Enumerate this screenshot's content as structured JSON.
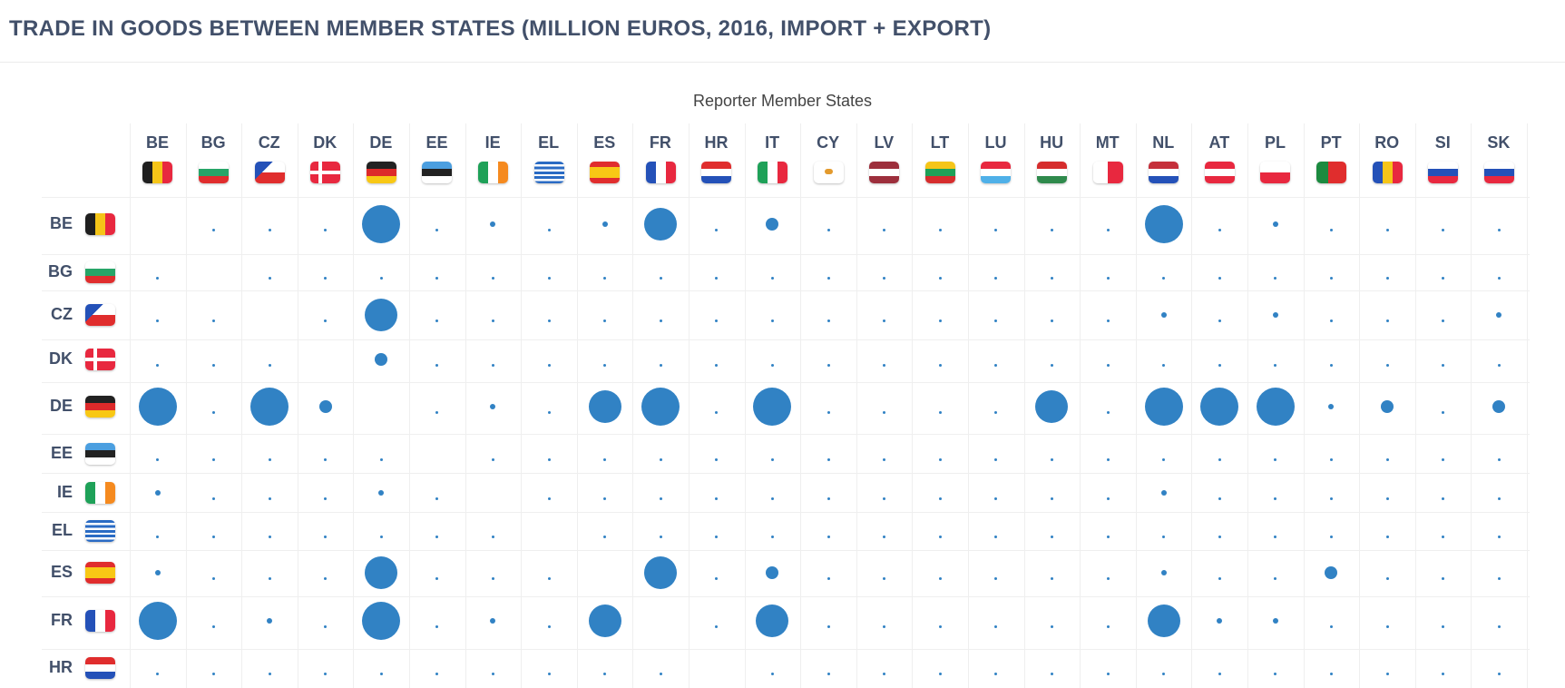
{
  "page": {
    "title": "TRADE IN GOODS BETWEEN MEMBER STATES (MILLION EUROS, 2016, IMPORT + EXPORT)"
  },
  "chart_data": {
    "type": "bubble-matrix",
    "title": "TRADE IN GOODS BETWEEN MEMBER STATES (MILLION EUROS, 2016, IMPORT + EXPORT)",
    "column_axis_label": "Reporter Member States",
    "columns": [
      "BE",
      "BG",
      "CZ",
      "DK",
      "DE",
      "EE",
      "IE",
      "EL",
      "ES",
      "FR",
      "HR",
      "IT",
      "CY",
      "LV",
      "LT",
      "LU",
      "HU",
      "MT",
      "NL",
      "AT",
      "PL",
      "PT",
      "RO",
      "SI",
      "SK"
    ],
    "rows": [
      "BE",
      "BG",
      "CZ",
      "DK",
      "DE",
      "EE",
      "IE",
      "EL",
      "ES",
      "FR",
      "HR"
    ],
    "bubble_color": "#3182c4",
    "size_level_legend": "0=tiny, 1=small, 2=medium, 3=large, 4=very large (estimated visual size)",
    "values": [
      [
        null,
        0,
        0,
        0,
        4,
        0,
        1,
        0,
        1,
        3,
        0,
        2,
        0,
        0,
        0,
        0,
        0,
        0,
        4,
        0,
        1,
        0,
        0,
        0,
        0
      ],
      [
        0,
        null,
        0,
        0,
        0,
        0,
        0,
        0,
        0,
        0,
        0,
        0,
        0,
        0,
        0,
        0,
        0,
        0,
        0,
        0,
        0,
        0,
        0,
        0,
        0
      ],
      [
        0,
        0,
        null,
        0,
        3,
        0,
        0,
        0,
        0,
        0,
        0,
        0,
        0,
        0,
        0,
        0,
        0,
        0,
        1,
        0,
        1,
        0,
        0,
        0,
        1
      ],
      [
        0,
        0,
        0,
        null,
        2,
        0,
        0,
        0,
        0,
        0,
        0,
        0,
        0,
        0,
        0,
        0,
        0,
        0,
        0,
        0,
        0,
        0,
        0,
        0,
        0
      ],
      [
        4,
        0,
        4,
        2,
        null,
        0,
        1,
        0,
        3,
        4,
        0,
        4,
        0,
        0,
        0,
        0,
        3,
        0,
        4,
        4,
        4,
        1,
        2,
        0,
        2
      ],
      [
        0,
        0,
        0,
        0,
        0,
        null,
        0,
        0,
        0,
        0,
        0,
        0,
        0,
        0,
        0,
        0,
        0,
        0,
        0,
        0,
        0,
        0,
        0,
        0,
        0
      ],
      [
        1,
        0,
        0,
        0,
        1,
        0,
        null,
        0,
        0,
        0,
        0,
        0,
        0,
        0,
        0,
        0,
        0,
        0,
        1,
        0,
        0,
        0,
        0,
        0,
        0
      ],
      [
        0,
        0,
        0,
        0,
        0,
        0,
        0,
        null,
        0,
        0,
        0,
        0,
        0,
        0,
        0,
        0,
        0,
        0,
        0,
        0,
        0,
        0,
        0,
        0,
        0
      ],
      [
        1,
        0,
        0,
        0,
        3,
        0,
        0,
        0,
        null,
        3,
        0,
        2,
        0,
        0,
        0,
        0,
        0,
        0,
        1,
        0,
        0,
        2,
        0,
        0,
        0
      ],
      [
        4,
        0,
        1,
        0,
        4,
        0,
        1,
        0,
        3,
        null,
        0,
        3,
        0,
        0,
        0,
        0,
        0,
        0,
        3,
        1,
        1,
        0,
        0,
        0,
        0
      ],
      [
        0,
        0,
        0,
        0,
        0,
        0,
        0,
        0,
        0,
        0,
        null,
        0,
        0,
        0,
        0,
        0,
        0,
        0,
        0,
        0,
        0,
        0,
        0,
        0,
        0
      ]
    ]
  }
}
